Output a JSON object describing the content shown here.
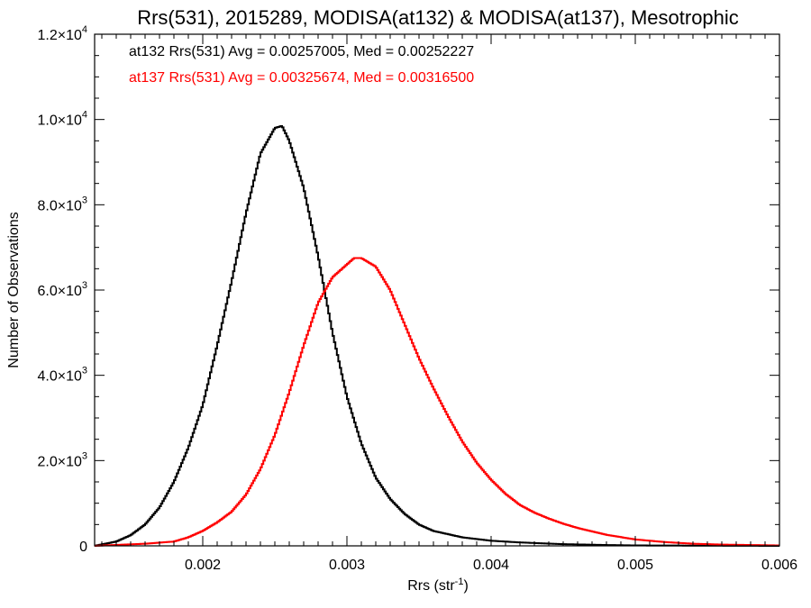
{
  "chart_data": {
    "type": "line",
    "title": "Rrs(531), 2015289, MODISA(at132) & MODISA(at137), Mesotrophic",
    "xlabel": "Rrs (str",
    "xlabel_sup": "-1",
    "xlabel_close": ")",
    "ylabel": "Number of Observations",
    "xlim": [
      0.00125,
      0.006
    ],
    "ylim": [
      0,
      12000
    ],
    "x_ticks": [
      {
        "value": 0.002,
        "label": "0.002"
      },
      {
        "value": 0.003,
        "label": "0.003"
      },
      {
        "value": 0.004,
        "label": "0.004"
      },
      {
        "value": 0.005,
        "label": "0.005"
      },
      {
        "value": 0.006,
        "label": "0.006"
      }
    ],
    "y_ticks": [
      {
        "value": 0,
        "mant": "0",
        "exp": ""
      },
      {
        "value": 2000,
        "mant": "2.0×10",
        "exp": "3"
      },
      {
        "value": 4000,
        "mant": "4.0×10",
        "exp": "3"
      },
      {
        "value": 6000,
        "mant": "6.0×10",
        "exp": "3"
      },
      {
        "value": 8000,
        "mant": "8.0×10",
        "exp": "3"
      },
      {
        "value": 10000,
        "mant": "1.0×10",
        "exp": "4"
      },
      {
        "value": 12000,
        "mant": "1.2×10",
        "exp": "4"
      }
    ],
    "annotations": [
      {
        "text": "at132 Rrs(531) Avg = 0.00257005, Med = 0.00252227",
        "color": "#000000"
      },
      {
        "text": "at137 Rrs(531) Avg = 0.00325674, Med = 0.00316500",
        "color": "#ff0000"
      }
    ],
    "series": [
      {
        "color": "#000000",
        "x": [
          0.00125,
          0.0014,
          0.0015,
          0.0016,
          0.0017,
          0.0018,
          0.0019,
          0.002,
          0.0021,
          0.0022,
          0.0023,
          0.0024,
          0.0025,
          0.00255,
          0.0026,
          0.0027,
          0.0028,
          0.0029,
          0.003,
          0.0031,
          0.0032,
          0.0033,
          0.0034,
          0.0035,
          0.0036,
          0.0038,
          0.004,
          0.0042,
          0.0045,
          0.0048,
          0.005,
          0.0055,
          0.006
        ],
        "y": [
          0,
          100,
          250,
          500,
          900,
          1500,
          2300,
          3300,
          4700,
          6200,
          7800,
          9200,
          9800,
          9850,
          9500,
          8400,
          6800,
          5000,
          3500,
          2400,
          1600,
          1100,
          750,
          500,
          350,
          200,
          120,
          80,
          40,
          20,
          10,
          5,
          0
        ]
      },
      {
        "color": "#ff0000",
        "x": [
          0.00125,
          0.0016,
          0.0018,
          0.0019,
          0.002,
          0.0021,
          0.0022,
          0.0023,
          0.0024,
          0.0025,
          0.0026,
          0.0027,
          0.0028,
          0.0029,
          0.003,
          0.00305,
          0.0031,
          0.0032,
          0.0033,
          0.0034,
          0.0035,
          0.0036,
          0.0037,
          0.0038,
          0.0039,
          0.004,
          0.0041,
          0.0042,
          0.0043,
          0.0044,
          0.0045,
          0.0046,
          0.0048,
          0.005,
          0.0052,
          0.0054,
          0.0056,
          0.006
        ],
        "y": [
          0,
          50,
          100,
          200,
          350,
          550,
          800,
          1200,
          1800,
          2600,
          3600,
          4700,
          5700,
          6300,
          6600,
          6750,
          6750,
          6550,
          6000,
          5200,
          4400,
          3700,
          3050,
          2450,
          1950,
          1550,
          1220,
          960,
          780,
          640,
          520,
          420,
          260,
          150,
          90,
          50,
          30,
          10
        ]
      }
    ]
  }
}
